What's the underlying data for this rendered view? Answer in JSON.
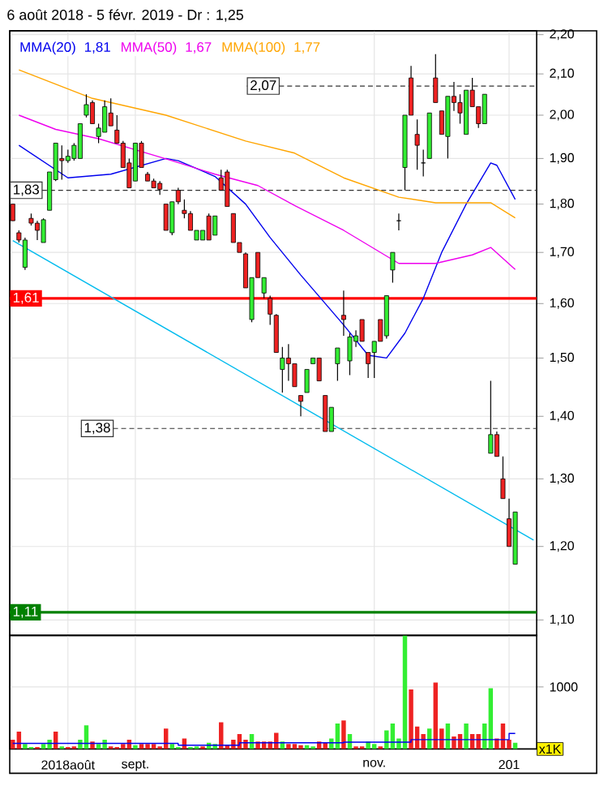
{
  "chart_data": [
    {
      "type": "candlestick",
      "title": "6 août 2018 - 5 févr. 2019 - Dr : 1,25",
      "tick_labels": "y",
      "log": true,
      "grid": true,
      "legend": "top left",
      "categories": [
        null,
        null,
        null,
        null,
        null,
        null,
        null,
        null,
        null,
        null,
        null,
        null,
        null,
        null,
        null,
        null,
        null,
        null,
        null,
        null,
        null,
        null,
        null,
        null,
        null,
        null,
        null,
        null,
        null,
        null,
        null,
        null,
        null,
        null,
        null,
        null,
        null,
        null,
        null,
        null,
        null,
        null,
        null,
        null,
        null,
        null,
        null,
        null,
        null,
        null,
        null,
        null,
        null,
        null,
        null,
        null,
        null,
        null,
        null,
        null,
        null,
        null,
        null,
        null,
        null,
        null,
        null,
        null,
        null,
        null,
        null,
        null,
        null,
        null,
        null,
        null,
        null,
        null,
        null,
        null,
        null,
        null,
        null,
        null,
        null,
        null
      ],
      "ohlc": [
        [
          1.8,
          1.8,
          1.765,
          1.765
        ],
        [
          1.74,
          1.745,
          1.72,
          1.725
        ],
        [
          1.67,
          1.73,
          1.665,
          1.725
        ],
        [
          1.77,
          1.78,
          1.755,
          1.76
        ],
        [
          1.76,
          1.765,
          1.725,
          1.745
        ],
        [
          1.72,
          1.77,
          1.72,
          1.767
        ],
        [
          1.787,
          1.87,
          1.787,
          1.87
        ],
        [
          1.853,
          1.935,
          1.85,
          1.935
        ],
        [
          1.9,
          1.93,
          1.853,
          1.895
        ],
        [
          1.895,
          1.92,
          1.89,
          1.905
        ],
        [
          1.9,
          1.935,
          1.895,
          1.93
        ],
        [
          1.9,
          1.98,
          1.9,
          1.98
        ],
        [
          2.0,
          2.05,
          1.995,
          2.025
        ],
        [
          2.03,
          2.035,
          1.98,
          1.98
        ],
        [
          1.95,
          1.98,
          1.935,
          1.97
        ],
        [
          1.96,
          2.035,
          1.96,
          2.02
        ],
        [
          2.005,
          2.04,
          1.975,
          1.975
        ],
        [
          1.965,
          2.0,
          1.935,
          1.935
        ],
        [
          1.935,
          1.94,
          1.88,
          1.88
        ],
        [
          1.89,
          1.9,
          1.835,
          1.835
        ],
        [
          1.85,
          1.935,
          1.85,
          1.935
        ],
        [
          1.935,
          1.94,
          1.88,
          1.88
        ],
        [
          1.865,
          1.87,
          1.85,
          1.85
        ],
        [
          1.85,
          1.855,
          1.835,
          1.835
        ],
        [
          1.845,
          1.85,
          1.82,
          1.832
        ],
        [
          1.8,
          1.8,
          1.745,
          1.745
        ],
        [
          1.74,
          1.805,
          1.735,
          1.805
        ],
        [
          1.83,
          1.835,
          1.8,
          1.805
        ],
        [
          1.787,
          1.81,
          1.77,
          1.78
        ],
        [
          1.78,
          1.785,
          1.745,
          1.745
        ],
        [
          1.725,
          1.745,
          1.725,
          1.745
        ],
        [
          1.725,
          1.745,
          1.725,
          1.745
        ],
        [
          1.775,
          1.78,
          1.725,
          1.725
        ],
        [
          1.735,
          1.775,
          1.735,
          1.775
        ],
        [
          1.857,
          1.875,
          1.83,
          1.83
        ],
        [
          1.87,
          1.875,
          1.795,
          1.795
        ],
        [
          1.78,
          1.78,
          1.72,
          1.72
        ],
        [
          1.72,
          1.72,
          1.7,
          1.7
        ],
        [
          1.697,
          1.7,
          1.63,
          1.63
        ],
        [
          1.57,
          1.65,
          1.565,
          1.65
        ],
        [
          1.7,
          1.7,
          1.65,
          1.65
        ],
        [
          1.62,
          1.65,
          1.61,
          1.65
        ],
        [
          1.61,
          1.615,
          1.56,
          1.58
        ],
        [
          1.578,
          1.58,
          1.51,
          1.51
        ],
        [
          1.48,
          1.52,
          1.44,
          1.5
        ],
        [
          1.5,
          1.525,
          1.46,
          1.49
        ],
        [
          1.49,
          1.49,
          1.45,
          1.45
        ],
        [
          1.435,
          1.435,
          1.4,
          1.425
        ],
        [
          1.44,
          1.48,
          1.44,
          1.48
        ],
        [
          1.49,
          1.5,
          1.49,
          1.5
        ],
        [
          1.5,
          1.5,
          1.46,
          1.46
        ],
        [
          1.435,
          1.435,
          1.375,
          1.375
        ],
        [
          1.375,
          1.415,
          1.375,
          1.415
        ],
        [
          1.49,
          1.518,
          1.46,
          1.518
        ],
        [
          1.578,
          1.625,
          1.54,
          1.57
        ],
        [
          1.495,
          1.545,
          1.47,
          1.538
        ],
        [
          1.53,
          1.55,
          1.52,
          1.54
        ],
        [
          1.57,
          1.57,
          1.53,
          1.53
        ],
        [
          1.51,
          1.51,
          1.465,
          1.49
        ],
        [
          1.51,
          1.53,
          1.465,
          1.53
        ],
        [
          1.57,
          1.57,
          1.53,
          1.53
        ],
        [
          1.54,
          1.615,
          1.535,
          1.615
        ],
        [
          1.665,
          1.7,
          1.64,
          1.7
        ],
        [
          1.765,
          1.78,
          1.745,
          1.765
        ],
        [
          1.88,
          2.0,
          1.83,
          2.0
        ],
        [
          2.09,
          2.12,
          2.0,
          2.0
        ],
        [
          1.955,
          1.99,
          1.875,
          1.93
        ],
        [
          1.89,
          1.92,
          1.86,
          1.89
        ],
        [
          1.9,
          2.005,
          1.9,
          2.005
        ],
        [
          2.09,
          2.15,
          2.03,
          2.03
        ],
        [
          2.01,
          2.01,
          1.955,
          1.955
        ],
        [
          1.95,
          2.045,
          1.9,
          2.045
        ],
        [
          2.045,
          2.08,
          2.01,
          2.03
        ],
        [
          2.03,
          2.05,
          1.98,
          2.005
        ],
        [
          1.955,
          2.06,
          1.955,
          2.06
        ],
        [
          2.06,
          2.09,
          2.02,
          2.02
        ],
        [
          2.02,
          2.02,
          1.97,
          1.98
        ],
        [
          1.98,
          2.05,
          1.98,
          2.05
        ],
        [
          1.34,
          1.46,
          1.34,
          1.37
        ],
        [
          1.37,
          1.375,
          1.335,
          1.335
        ],
        [
          1.3,
          1.335,
          1.27,
          1.27
        ],
        [
          1.24,
          1.27,
          1.2,
          1.2
        ],
        [
          1.175,
          1.25,
          1.175,
          1.25
        ],
        null,
        null,
        null
      ],
      "series": [
        {
          "type": "line",
          "name": "MMA(20)",
          "color": "#0000ee",
          "values": [
            null,
            1.93,
            null,
            null,
            null,
            null,
            null,
            null,
            null,
            1.857,
            null,
            null,
            null,
            null,
            null,
            null,
            1.865,
            null,
            null,
            null,
            null,
            null,
            null,
            null,
            null,
            1.9,
            null,
            1.895,
            null,
            null,
            null,
            null,
            null,
            1.86,
            null,
            null,
            null,
            null,
            1.8,
            null,
            null,
            null,
            1.73,
            null,
            null,
            null,
            null,
            1.655,
            null,
            null,
            null,
            null,
            null,
            null,
            1.56,
            null,
            null,
            null,
            1.505,
            null,
            null,
            1.5,
            null,
            null,
            1.545,
            null,
            null,
            1.61,
            null,
            null,
            1.7,
            null,
            null,
            null,
            1.8,
            null,
            null,
            null,
            1.89,
            1.885,
            null,
            null,
            1.81,
            null,
            null,
            null
          ]
        },
        {
          "type": "line",
          "name": "MMA(50)",
          "color": "#ee00ee",
          "values": [
            null,
            2.0,
            null,
            null,
            null,
            null,
            null,
            1.967,
            null,
            null,
            null,
            null,
            null,
            null,
            1.945,
            null,
            null,
            null,
            null,
            null,
            1.92,
            null,
            null,
            null,
            null,
            null,
            1.895,
            null,
            null,
            null,
            null,
            null,
            null,
            1.865,
            null,
            null,
            null,
            null,
            null,
            null,
            1.84,
            null,
            null,
            null,
            null,
            null,
            1.797,
            null,
            null,
            null,
            null,
            null,
            null,
            null,
            1.745,
            null,
            null,
            null,
            null,
            null,
            null,
            null,
            null,
            1.678,
            null,
            null,
            null,
            null,
            null,
            1.678,
            null,
            null,
            null,
            null,
            null,
            1.695,
            null,
            null,
            1.71,
            null,
            null,
            null,
            1.666,
            null,
            null,
            null
          ]
        },
        {
          "type": "line",
          "name": "MMA(100)",
          "color": "#ffa500",
          "values": [
            null,
            2.11,
            null,
            null,
            null,
            null,
            null,
            null,
            null,
            null,
            null,
            null,
            null,
            2.04,
            null,
            null,
            null,
            null,
            null,
            null,
            null,
            null,
            null,
            null,
            null,
            2.0,
            null,
            null,
            null,
            null,
            null,
            null,
            null,
            null,
            null,
            null,
            null,
            null,
            1.94,
            null,
            null,
            null,
            null,
            null,
            null,
            null,
            1.912,
            null,
            null,
            null,
            null,
            null,
            null,
            null,
            1.857,
            null,
            null,
            null,
            null,
            null,
            null,
            null,
            null,
            1.815,
            null,
            null,
            null,
            null,
            null,
            1.803,
            null,
            null,
            null,
            null,
            null,
            null,
            null,
            null,
            1.803,
            null,
            null,
            null,
            1.771,
            null,
            null,
            null
          ]
        },
        {
          "type": "line",
          "color": "#00bbee",
          "values": [
            1.724,
            null,
            null,
            null,
            null,
            null,
            null,
            null,
            null,
            null,
            null,
            null,
            null,
            null,
            null,
            null,
            null,
            null,
            null,
            null,
            null,
            null,
            null,
            null,
            null,
            null,
            null,
            null,
            null,
            null,
            null,
            null,
            null,
            null,
            null,
            null,
            null,
            null,
            null,
            null,
            null,
            null,
            null,
            null,
            null,
            null,
            null,
            null,
            null,
            null,
            null,
            null,
            null,
            null,
            null,
            null,
            null,
            null,
            null,
            null,
            null,
            null,
            null,
            null,
            null,
            null,
            null,
            null,
            null,
            null,
            null,
            null,
            null,
            null,
            null,
            null,
            null,
            null,
            null,
            null,
            null,
            null,
            null,
            null,
            null,
            1.209
          ]
        }
      ],
      "annotations": [
        "1,81",
        "1,67",
        "1,77"
      ],
      "ylim": [
        1.08,
        2.21
      ],
      "yticks": [
        {
          "value": 1.1,
          "label": "1,10"
        },
        {
          "value": 1.2,
          "label": "1,20"
        },
        {
          "value": 1.3,
          "label": "1,30"
        },
        {
          "value": 1.4,
          "label": "1,40"
        },
        {
          "value": 1.5,
          "label": "1,50"
        },
        {
          "value": 1.6,
          "label": "1,60"
        },
        {
          "value": 1.7,
          "label": "1,70"
        },
        {
          "value": 1.8,
          "label": "1,80"
        },
        {
          "value": 1.9,
          "label": "1,90"
        },
        {
          "value": 2.0,
          "label": "2,00"
        },
        {
          "value": 2.1,
          "label": "2,10"
        },
        {
          "value": 2.2,
          "label": "2,20"
        }
      ],
      "ref_lines": [
        {
          "axis": "y",
          "value": 2.07,
          "label": "2,07",
          "line_style": "dashed",
          "color": "#333333"
        },
        {
          "axis": "y",
          "value": 1.83,
          "label": "1,83",
          "line_style": "dashed",
          "color": "#333333"
        },
        {
          "axis": "y",
          "value": 1.61,
          "label": "1,61",
          "line_style": "solid",
          "color": "#ff0000"
        },
        {
          "axis": "y",
          "value": 1.38,
          "label": "1,38",
          "line_style": "dashed",
          "color": "#333333"
        },
        {
          "axis": "y",
          "value": 1.11,
          "label": "1,11",
          "line_style": "solid",
          "color": "#008000"
        }
      ]
    },
    {
      "type": "bar",
      "grid": true,
      "ylabel": "x1K",
      "ylim": [
        0,
        1830
      ],
      "yticks": [
        1000
      ],
      "categories": [
        null,
        null,
        null,
        null,
        null,
        null,
        null,
        null,
        null,
        "2018août",
        null,
        null,
        null,
        null,
        null,
        null,
        null,
        null,
        null,
        null,
        "sept.",
        null,
        null,
        null,
        null,
        null,
        null,
        null,
        null,
        null,
        null,
        null,
        null,
        null,
        null,
        null,
        null,
        null,
        null,
        null,
        null,
        null,
        null,
        null,
        null,
        null,
        null,
        null,
        null,
        null,
        null,
        null,
        null,
        null,
        null,
        null,
        null,
        null,
        null,
        "nov.",
        null,
        null,
        null,
        null,
        null,
        null,
        null,
        null,
        null,
        null,
        null,
        null,
        null,
        null,
        null,
        null,
        null,
        null,
        null,
        null,
        null,
        "201",
        null,
        null,
        null,
        null
      ],
      "series": [
        {
          "type": "bar",
          "values": [
            150,
            280,
            80,
            30,
            30,
            80,
            150,
            280,
            40,
            30,
            40,
            150,
            380,
            120,
            80,
            150,
            40,
            30,
            80,
            150,
            60,
            80,
            80,
            80,
            40,
            330,
            80,
            30,
            170,
            30,
            40,
            40,
            100,
            80,
            430,
            60,
            150,
            240,
            150,
            240,
            120,
            120,
            120,
            260,
            120,
            80,
            80,
            60,
            60,
            40,
            120,
            100,
            170,
            410,
            460,
            240,
            40,
            40,
            120,
            80,
            40,
            300,
            410,
            170,
            1830,
            960,
            360,
            240,
            330,
            1070,
            330,
            410,
            200,
            240,
            410,
            240,
            240,
            410,
            980,
            170,
            410,
            150,
            100,
            null,
            null,
            null
          ],
          "colors": [
            "#ee2222",
            "#ee2222",
            "#33ee33",
            "#33ee33",
            "#ee2222",
            "#33ee33",
            "#33ee33",
            "#ee2222",
            "#33ee33",
            "#ee2222",
            "#ee2222",
            "#33ee33",
            "#33ee33",
            "#ee2222",
            "#33ee33",
            "#33ee33",
            "#ee2222",
            "#ee2222",
            "#ee2222",
            "#ee2222",
            "#33ee33",
            "#ee2222",
            "#ee2222",
            "#ee2222",
            "#ee2222",
            "#ee2222",
            "#33ee33",
            "#33ee33",
            "#ee2222",
            "#33ee33",
            "#33ee33",
            "#ee2222",
            "#33ee33",
            "#33ee33",
            "#ee2222",
            "#ee2222",
            "#ee2222",
            "#ee2222",
            "#ee2222",
            "#33ee33",
            "#ee2222",
            "#ee2222",
            "#ee2222",
            "#ee2222",
            "#33ee33",
            "#ee2222",
            "#ee2222",
            "#ee2222",
            "#33ee33",
            "#33ee33",
            "#ee2222",
            "#ee2222",
            "#33ee33",
            "#33ee33",
            "#ee2222",
            "#33ee33",
            "#ee2222",
            "#ee2222",
            "#33ee33",
            "#33ee33",
            "#ee2222",
            "#33ee33",
            "#33ee33",
            "#33ee33",
            "#33ee33",
            "#ee2222",
            "#ee2222",
            "#ee2222",
            "#33ee33",
            "#ee2222",
            "#ee2222",
            "#33ee33",
            "#ee2222",
            "#ee2222",
            "#33ee33",
            "#ee2222",
            "#ee2222",
            "#33ee33",
            "#33ee33",
            "#ee2222",
            "#ee2222",
            "#ee2222",
            "#33ee33",
            null,
            null,
            null
          ]
        },
        {
          "type": "step",
          "color": "#0000ee",
          "values": [
            90,
            90,
            90,
            90,
            90,
            90,
            90,
            90,
            90,
            90,
            90,
            90,
            90,
            90,
            90,
            90,
            90,
            90,
            90,
            90,
            90,
            90,
            90,
            90,
            90,
            90,
            90,
            60,
            60,
            60,
            60,
            60,
            60,
            60,
            60,
            60,
            60,
            100,
            100,
            100,
            100,
            100,
            100,
            100,
            100,
            100,
            100,
            100,
            100,
            100,
            100,
            100,
            100,
            100,
            110,
            110,
            110,
            110,
            110,
            110,
            110,
            110,
            110,
            110,
            110,
            150,
            150,
            150,
            150,
            150,
            150,
            150,
            150,
            150,
            150,
            150,
            150,
            150,
            150,
            150,
            150,
            250,
            250,
            null,
            null,
            null
          ]
        }
      ]
    }
  ]
}
